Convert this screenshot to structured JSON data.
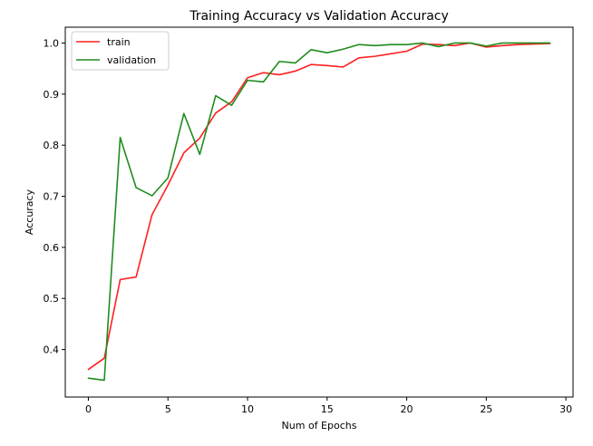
{
  "chart_data": {
    "type": "line",
    "title": "Training Accuracy vs Validation Accuracy",
    "xlabel": "Num of Epochs",
    "ylabel": "Accuracy",
    "xlim": [
      -1.45,
      30.45
    ],
    "ylim": [
      0.307,
      1.031
    ],
    "xticks": [
      0,
      5,
      10,
      15,
      20,
      25,
      30
    ],
    "yticks": [
      0.4,
      0.5,
      0.6,
      0.7,
      0.8,
      0.9,
      1.0
    ],
    "xtick_labels": [
      "0",
      "5",
      "10",
      "15",
      "20",
      "25",
      "30"
    ],
    "ytick_labels": [
      "0.4",
      "0.5",
      "0.6",
      "0.7",
      "0.8",
      "0.9",
      "1.0"
    ],
    "grid": false,
    "legend_position": "top-left",
    "x": [
      0,
      1,
      2,
      3,
      4,
      5,
      6,
      7,
      8,
      9,
      10,
      11,
      12,
      13,
      14,
      15,
      16,
      17,
      18,
      19,
      20,
      21,
      22,
      23,
      24,
      25,
      26,
      27,
      28,
      29
    ],
    "series": [
      {
        "name": "train",
        "color": "#ff2020",
        "values": [
          0.361,
          0.383,
          0.537,
          0.542,
          0.664,
          0.722,
          0.785,
          0.814,
          0.863,
          0.885,
          0.932,
          0.942,
          0.938,
          0.945,
          0.958,
          0.956,
          0.953,
          0.971,
          0.974,
          0.979,
          0.984,
          0.998,
          0.997,
          0.995,
          1.0,
          0.992,
          0.995,
          0.997,
          0.998,
          0.999
        ]
      },
      {
        "name": "validation",
        "color": "#1f8c1f",
        "values": [
          0.344,
          0.34,
          0.815,
          0.717,
          0.701,
          0.736,
          0.862,
          0.782,
          0.897,
          0.878,
          0.927,
          0.924,
          0.964,
          0.961,
          0.987,
          0.981,
          0.988,
          0.997,
          0.995,
          0.997,
          0.997,
          1.0,
          0.993,
          1.0,
          1.0,
          0.994,
          1.0,
          1.0,
          1.0,
          1.0
        ]
      }
    ]
  }
}
